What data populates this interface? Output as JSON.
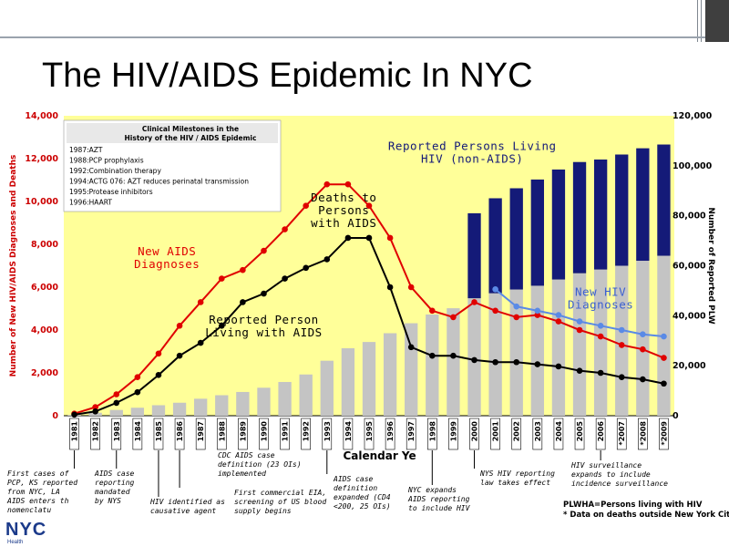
{
  "slide_title": "The HIV/AIDS Epidemic In NYC",
  "logo": {
    "text": "NYC",
    "subtext": "Health"
  },
  "colors": {
    "bar_gray": "#c4c4c4",
    "bar_navy": "#141a78",
    "red": "#e00000",
    "blue": "#5a8ae6",
    "plot_bg": "#ffff99",
    "axis_text": "#cc0000"
  },
  "chart_data": {
    "type": "bar",
    "xlabel": "Calendar Ye",
    "ylabel_left": "Number of New HIV/AIDS Diagnoses and Deaths",
    "ylabel_right": "Number of Reported PLW",
    "ylim_left": [
      0,
      14000
    ],
    "ylim_right": [
      0,
      120000
    ],
    "left_ticks": [
      "0",
      "2,000",
      "4,000",
      "6,000",
      "8,000",
      "10,000",
      "12,000",
      "14,000"
    ],
    "right_ticks": [
      "0",
      "20,000",
      "40,000",
      "60,000",
      "80,000",
      "100,000",
      "120,000"
    ],
    "categories": [
      "1981",
      "1982",
      "1983",
      "1984",
      "1985",
      "1986",
      "1987",
      "1988",
      "1989",
      "1990",
      "1991",
      "1992",
      "1993",
      "1994",
      "1995",
      "1996",
      "1997",
      "1998",
      "1999",
      "2000",
      "2001",
      "2002",
      "2003",
      "2004",
      "2005",
      "2006",
      "*2007",
      "*2008",
      "*2009"
    ],
    "series": [
      {
        "name": "Reported Person Living with AIDS",
        "axis": "right",
        "kind": "bar",
        "values": [
          300,
          1200,
          2300,
          3200,
          4200,
          5200,
          6800,
          8200,
          9500,
          11200,
          13500,
          16500,
          22000,
          27000,
          29500,
          33000,
          37000,
          40500,
          43000,
          47000,
          49000,
          50500,
          52000,
          54500,
          57000,
          58500,
          60000,
          62000,
          64000
        ]
      },
      {
        "name": "Reported Persons Living HIV (non-AIDS)",
        "axis": "right",
        "kind": "stacked_bar",
        "values": [
          null,
          null,
          null,
          null,
          null,
          null,
          null,
          null,
          null,
          null,
          null,
          null,
          null,
          null,
          null,
          null,
          null,
          null,
          null,
          34000,
          38000,
          40500,
          42500,
          44000,
          44500,
          44000,
          44500,
          45000,
          44500
        ]
      },
      {
        "name": "New AIDS Diagnoses",
        "axis": "left",
        "kind": "line",
        "values": [
          100,
          400,
          1000,
          1800,
          2900,
          4200,
          5300,
          6400,
          6800,
          7700,
          8700,
          9800,
          10800,
          10800,
          9800,
          8300,
          6000,
          4900,
          4600,
          5300,
          4900,
          4600,
          4700,
          4400,
          4000,
          3700,
          3300,
          3100,
          2700
        ]
      },
      {
        "name": "Deaths to Persons with AIDS",
        "axis": "left",
        "kind": "line",
        "values": [
          50,
          200,
          600,
          1100,
          1900,
          2800,
          3400,
          4200,
          5300,
          5700,
          6400,
          6900,
          7300,
          8300,
          8300,
          6000,
          3200,
          2800,
          2800,
          2600,
          2500,
          2500,
          2400,
          2300,
          2100,
          2000,
          1800,
          1700,
          1500
        ]
      },
      {
        "name": "New HIV Diagnoses",
        "axis": "left",
        "kind": "line",
        "start_index": 20,
        "values": [
          null,
          null,
          null,
          null,
          null,
          null,
          null,
          null,
          null,
          null,
          null,
          null,
          null,
          null,
          null,
          null,
          null,
          null,
          null,
          null,
          5900,
          5100,
          4900,
          4700,
          4400,
          4200,
          4000,
          3800,
          3700
        ]
      }
    ],
    "series_labels": [
      {
        "lines": [
          "New AIDS",
          "Diagnoses"
        ],
        "color": "#e00000",
        "anchor": {
          "cat": 4.4,
          "val": 7500,
          "axis": "left"
        }
      },
      {
        "lines": [
          "Deaths to",
          "Persons",
          "with AIDS"
        ],
        "color": "#000000",
        "anchor": {
          "cat": 12.8,
          "val": 10000,
          "axis": "left"
        }
      },
      {
        "lines": [
          "Reported Person",
          "Living with AIDS"
        ],
        "color": "#000000",
        "anchor": {
          "cat": 9.0,
          "val": 4300,
          "axis": "left"
        }
      },
      {
        "lines": [
          "Reported Persons Living",
          "HIV (non-AIDS)"
        ],
        "color": "#141a78",
        "anchor": {
          "cat": 18.9,
          "val": 12400,
          "axis": "left"
        }
      },
      {
        "lines": [
          "New HIV",
          "Diagnoses"
        ],
        "color": "#3a5fd0",
        "anchor": {
          "cat": 25.0,
          "val": 5600,
          "axis": "left"
        }
      }
    ],
    "milestone_box": {
      "heading": [
        "Clinical Milestones in the",
        "History of the HIV / AIDS Epidemic"
      ],
      "items": [
        "1987:AZT",
        "1988:PCP prophylaxis",
        "1992:Combination therapy",
        "1994:ACTG 076: AZT reduces perinatal transmission",
        "1995:Protease inhibitors",
        "1996:HAART"
      ]
    },
    "annotations": [
      {
        "lines": [
          "First cases of",
          "PCP, KS reported",
          "from NYC, LA",
          "AIDS enters th",
          "nomenclatu"
        ],
        "cat": 0
      },
      {
        "lines": [
          "AIDS case",
          "reporting",
          "mandated",
          "by NYS"
        ],
        "cat": 2
      },
      {
        "lines": [
          "HIV identified as",
          "causative agent"
        ],
        "cat": 4
      },
      {
        "lines": [
          "CDC AIDS case",
          "definition (23 OIs)",
          "implemented"
        ],
        "cat": 6
      },
      {
        "lines": [
          "First commercial EIA,",
          "screening of US blood",
          "supply begins"
        ],
        "cat": 5
      },
      {
        "lines": [
          "AIDS case",
          "definition",
          "expanded (CD4",
          "<200, 25 OIs)"
        ],
        "cat": 12
      },
      {
        "lines": [
          "NYC expands",
          "AIDS reporting",
          "to include HIV"
        ],
        "cat": 17
      },
      {
        "lines": [
          "NYS HIV reporting",
          "law takes effect"
        ],
        "cat": 19
      },
      {
        "lines": [
          "HIV surveillance",
          "expands to include",
          "incidence surveillance"
        ],
        "cat": 25
      }
    ],
    "footnotes": [
      "PLWHA=Persons living with HIV",
      "* Data on deaths outside New York City are i"
    ]
  }
}
